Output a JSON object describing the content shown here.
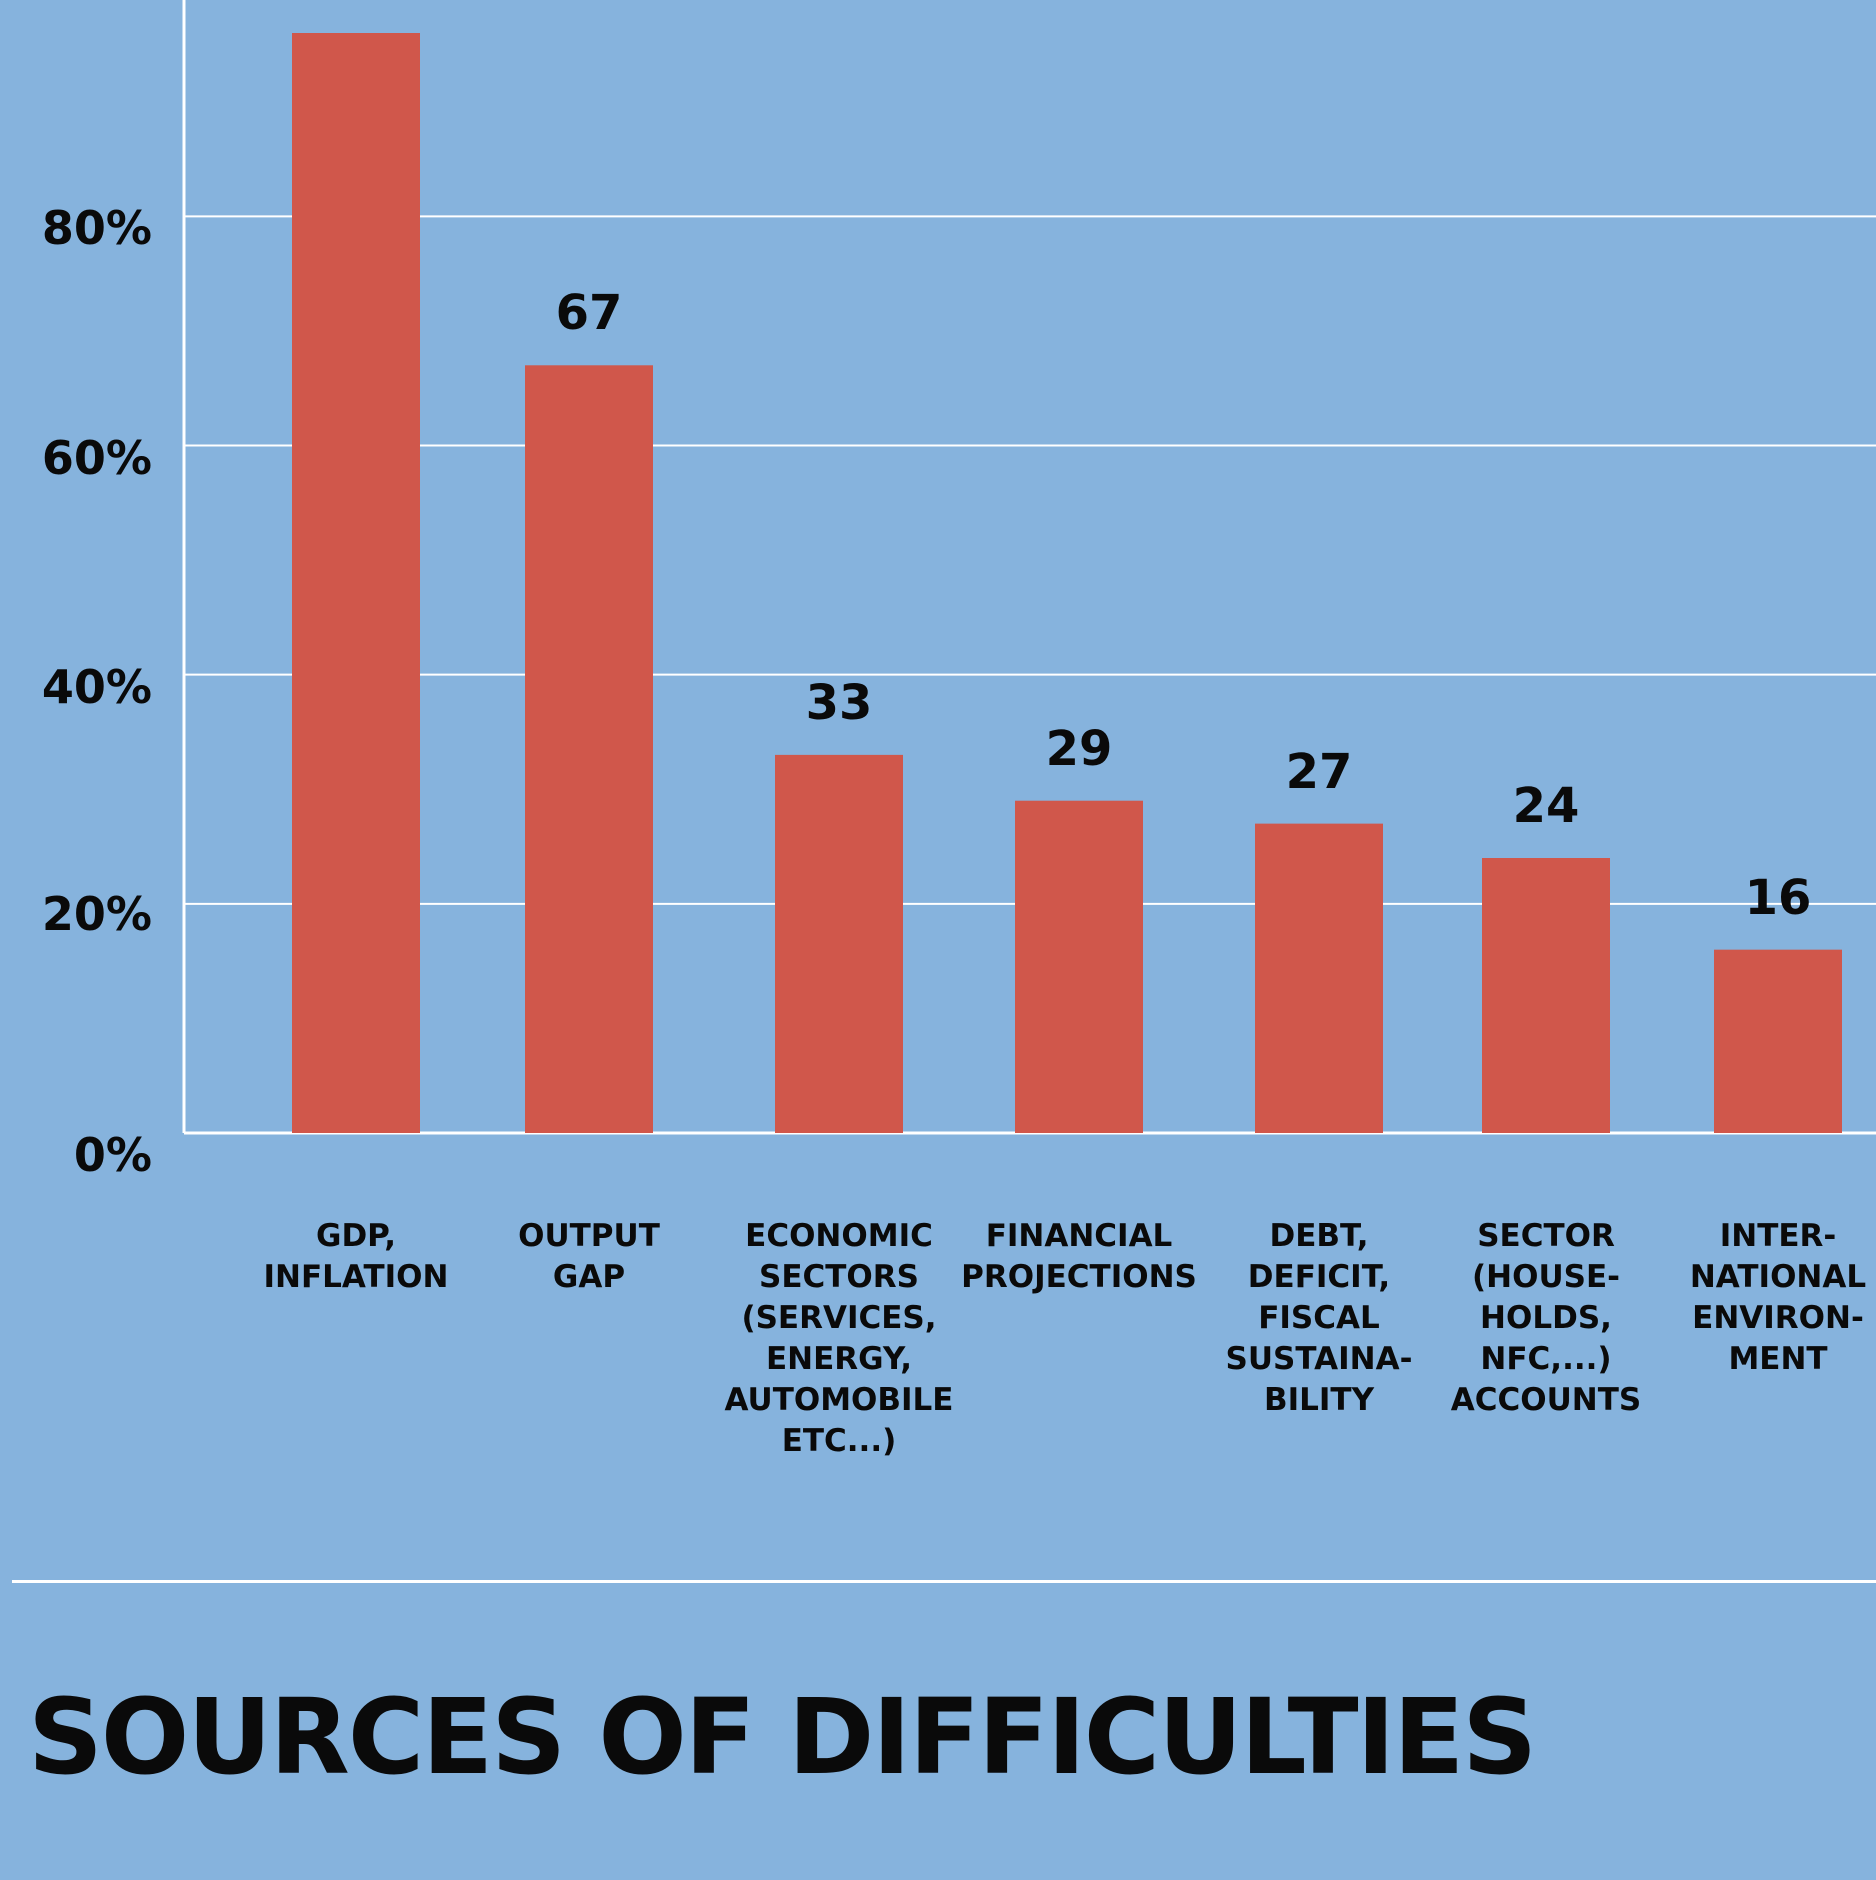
{
  "title": "SOURCES OF DIFFICULTIES",
  "chart_data": {
    "type": "bar",
    "title": "SOURCES OF DIFFICULTIES",
    "xlabel": "",
    "ylabel": "",
    "ylim": [
      0,
      100
    ],
    "y_ticks": [
      "0%",
      "20%",
      "40%",
      "60%",
      "80%"
    ],
    "y_tick_values": [
      0,
      20,
      40,
      60,
      80
    ],
    "grid": true,
    "bar_color": "#d0574b",
    "grid_color": "#ffffff",
    "background_color": "#86b3dd",
    "categories": [
      [
        "GDP,",
        "INFLATION"
      ],
      [
        "OUTPUT",
        "GAP"
      ],
      [
        "ECONOMIC",
        "SECTORS",
        "(SERVICES,",
        "ENERGY,",
        "AUTOMOBILE",
        "ETC...)"
      ],
      [
        "FINANCIAL",
        "PROJECTIONS"
      ],
      [
        "DEBT,",
        "DEFICIT,",
        "FISCAL",
        "SUSTAINA-",
        "BILITY"
      ],
      [
        "SECTOR",
        "(HOUSE-",
        "HOLDS,",
        "NFC,...)",
        "ACCOUNTS"
      ],
      [
        "INTER-",
        "NATIONAL",
        "ENVIRON-",
        "MENT"
      ]
    ],
    "values": [
      96,
      67,
      33,
      29,
      27,
      24,
      16
    ],
    "data_labels": [
      "",
      "67",
      "33",
      "29",
      "27",
      "24",
      "16"
    ]
  }
}
